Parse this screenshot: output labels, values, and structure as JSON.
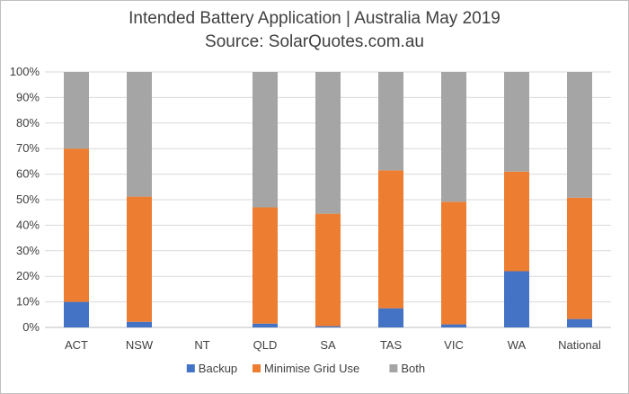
{
  "chart_data": {
    "type": "bar",
    "stacked": true,
    "title": "Intended Battery Application | Australia May 2019",
    "subtitle": "Source: SolarQuotes.com.au",
    "categories": [
      "ACT",
      "NSW",
      "NT",
      "QLD",
      "SA",
      "TAS",
      "VIC",
      "WA",
      "National"
    ],
    "y_ticks": [
      "0%",
      "10%",
      "20%",
      "30%",
      "40%",
      "50%",
      "60%",
      "70%",
      "80%",
      "90%",
      "100%"
    ],
    "ylim": [
      0,
      100
    ],
    "grid": true,
    "legend_position": "bottom",
    "series": [
      {
        "name": "Backup",
        "color": "#4472c4",
        "values": [
          10,
          2.2,
          0,
          1.5,
          0.5,
          7.5,
          1.2,
          22,
          3.3
        ]
      },
      {
        "name": "Minimise Grid Use",
        "color": "#ed7d31",
        "values": [
          60,
          49,
          0,
          45.5,
          44,
          54,
          48,
          39,
          47.5
        ]
      },
      {
        "name": "Both",
        "color": "#a5a5a5",
        "values": [
          30,
          48.8,
          0,
          53,
          55.5,
          38.5,
          50.8,
          39,
          49.2
        ]
      }
    ]
  }
}
